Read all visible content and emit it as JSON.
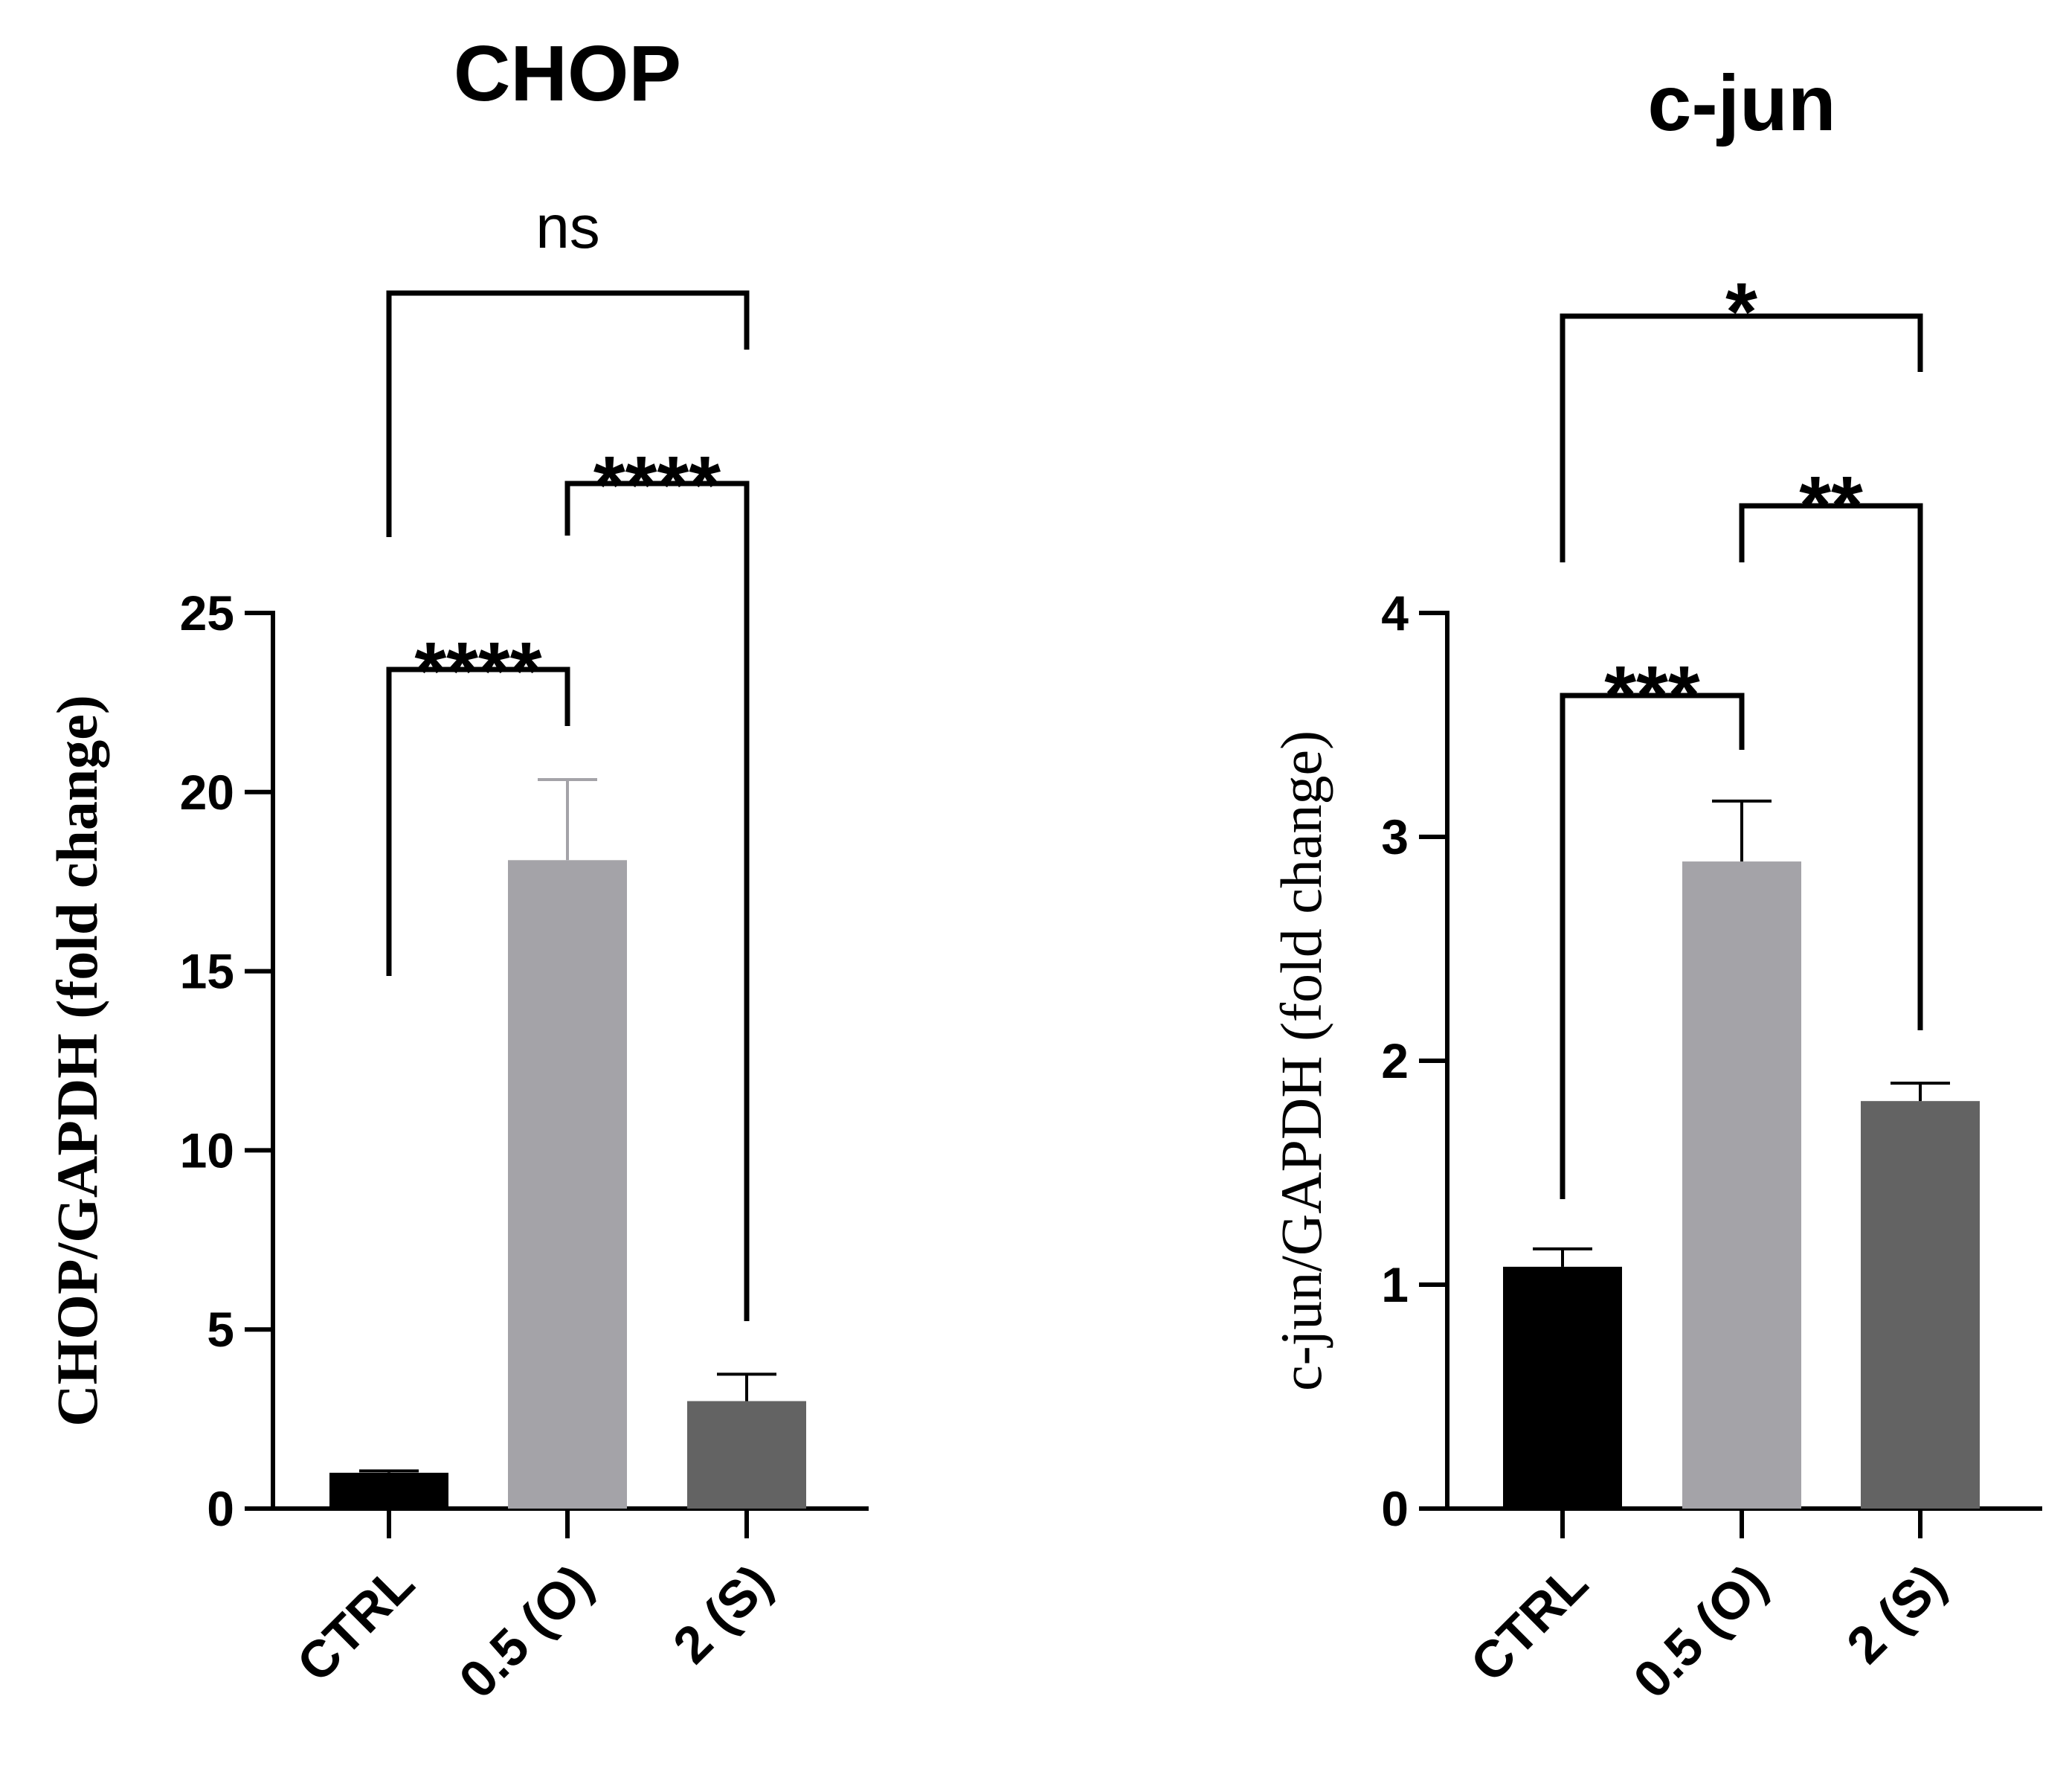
{
  "chart_data": [
    {
      "type": "bar",
      "title": "CHOP",
      "ylabel": "CHOP/GAPDH (fold change)",
      "ylim": [
        0,
        25
      ],
      "yticks": [
        "0",
        "5",
        "10",
        "15",
        "20",
        "25"
      ],
      "categories": [
        "CTRL",
        "0.5 (O)",
        "2 (S)"
      ],
      "values": [
        1.0,
        18.1,
        3.0
      ],
      "errors": [
        0.05,
        2.25,
        0.75
      ],
      "colors": [
        "#000000",
        "#a4a3a8",
        "#636363"
      ],
      "significance": [
        {
          "from": 0,
          "to": 1,
          "label": "****"
        },
        {
          "from": 1,
          "to": 2,
          "label": "****"
        },
        {
          "from": 0,
          "to": 2,
          "label": "ns"
        }
      ]
    },
    {
      "type": "bar",
      "title": "c-jun",
      "ylabel": "c-jun/GAPDH (fold change)",
      "ylim": [
        0,
        4
      ],
      "yticks": [
        "0",
        "1",
        "2",
        "3",
        "4"
      ],
      "categories": [
        "CTRL",
        "0.5 (O)",
        "2 (S)"
      ],
      "values": [
        1.08,
        2.89,
        1.82
      ],
      "errors": [
        0.08,
        0.27,
        0.08
      ],
      "colors": [
        "#000000",
        "#a4a3a8",
        "#636363"
      ],
      "significance": [
        {
          "from": 0,
          "to": 1,
          "label": "***"
        },
        {
          "from": 1,
          "to": 2,
          "label": "**"
        },
        {
          "from": 0,
          "to": 2,
          "label": "*"
        }
      ]
    }
  ]
}
